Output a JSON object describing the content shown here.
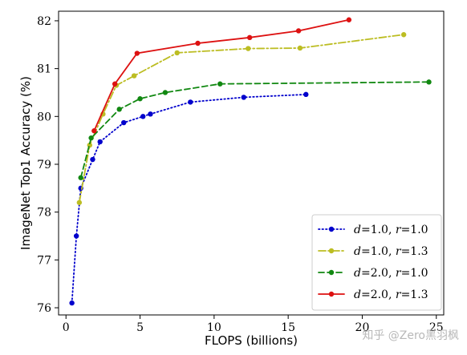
{
  "chart_data": {
    "type": "line",
    "xlabel": "FLOPS (billions)",
    "ylabel": "ImageNet Top1 Accuracy (%)",
    "xlim": [
      -0.5,
      25.5
    ],
    "ylim": [
      75.85,
      82.2
    ],
    "xticks": [
      0,
      5,
      10,
      15,
      20,
      25
    ],
    "yticks": [
      76,
      77,
      78,
      79,
      80,
      81,
      82
    ],
    "grid": false,
    "legend_position": "lower-right",
    "series": [
      {
        "name_parts": [
          "d=1.0",
          "r=1.0"
        ],
        "color": "#0000cc",
        "line_style": "dotted",
        "x": [
          0.4,
          0.7,
          1.0,
          1.8,
          2.3,
          3.9,
          5.2,
          5.7,
          8.4,
          12.0,
          16.2
        ],
        "y": [
          76.1,
          77.5,
          78.5,
          79.1,
          79.47,
          79.87,
          80.0,
          80.05,
          80.3,
          80.4,
          80.46
        ]
      },
      {
        "name_parts": [
          "d=1.0",
          "r=1.3"
        ],
        "color": "#bcbd22",
        "line_style": "dashdot",
        "x": [
          0.9,
          1.6,
          2.5,
          3.4,
          4.6,
          7.5,
          12.3,
          15.8,
          22.8
        ],
        "y": [
          78.2,
          79.4,
          80.05,
          80.65,
          80.85,
          81.33,
          81.42,
          81.43,
          81.71
        ]
      },
      {
        "name_parts": [
          "d=2.0",
          "r=1.0"
        ],
        "color": "#118811",
        "line_style": "dashed",
        "x": [
          1.0,
          1.7,
          3.6,
          5.0,
          6.7,
          10.4,
          24.5
        ],
        "y": [
          78.72,
          79.55,
          80.15,
          80.37,
          80.5,
          80.68,
          80.72
        ]
      },
      {
        "name_parts": [
          "d=2.0",
          "r=1.3"
        ],
        "color": "#dd1111",
        "line_style": "solid",
        "x": [
          1.9,
          3.3,
          4.8,
          8.9,
          12.4,
          15.7,
          19.1
        ],
        "y": [
          79.7,
          80.68,
          81.32,
          81.53,
          81.65,
          81.79,
          82.02
        ]
      }
    ]
  },
  "watermark": "知乎 @Zero黑羽枫"
}
